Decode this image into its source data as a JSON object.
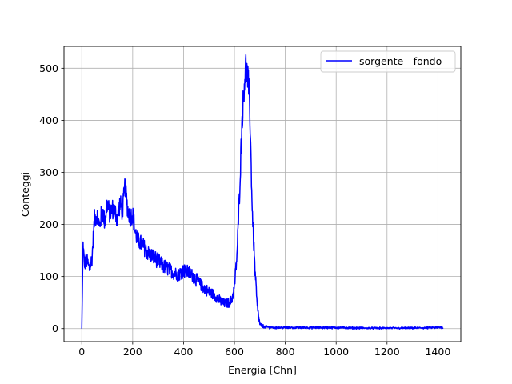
{
  "chart_data": {
    "type": "line",
    "xlabel": "Energia [Chn]",
    "ylabel": "Conteggi",
    "xlim": [
      -70,
      1490
    ],
    "ylim": [
      -25,
      542
    ],
    "xticks": [
      0,
      200,
      400,
      600,
      800,
      1000,
      1200,
      1400
    ],
    "yticks": [
      0,
      100,
      200,
      300,
      400,
      500
    ],
    "grid": true,
    "legend_position": "top-right",
    "series": [
      {
        "name": "sorgente - fondo",
        "color": "#0000ff",
        "x": [
          0,
          5,
          10,
          20,
          30,
          40,
          50,
          60,
          70,
          80,
          90,
          100,
          110,
          120,
          130,
          140,
          150,
          160,
          170,
          180,
          190,
          200,
          210,
          220,
          240,
          260,
          280,
          300,
          320,
          340,
          360,
          380,
          400,
          420,
          440,
          460,
          480,
          500,
          520,
          540,
          560,
          580,
          590,
          600,
          610,
          620,
          630,
          640,
          645,
          650,
          655,
          660,
          665,
          670,
          680,
          690,
          700,
          720,
          760,
          800,
          900,
          1000,
          1100,
          1200,
          1300,
          1400,
          1420
        ],
        "y": [
          0,
          160,
          125,
          130,
          115,
          135,
          210,
          220,
          195,
          230,
          205,
          240,
          220,
          230,
          225,
          210,
          240,
          225,
          275,
          230,
          215,
          220,
          185,
          170,
          160,
          145,
          138,
          130,
          120,
          115,
          108,
          104,
          112,
          108,
          100,
          88,
          78,
          70,
          65,
          55,
          48,
          50,
          55,
          80,
          140,
          260,
          400,
          480,
          505,
          490,
          470,
          430,
          330,
          230,
          120,
          40,
          8,
          3,
          2,
          2,
          2,
          2,
          1,
          1,
          1,
          2,
          3
        ]
      }
    ]
  }
}
